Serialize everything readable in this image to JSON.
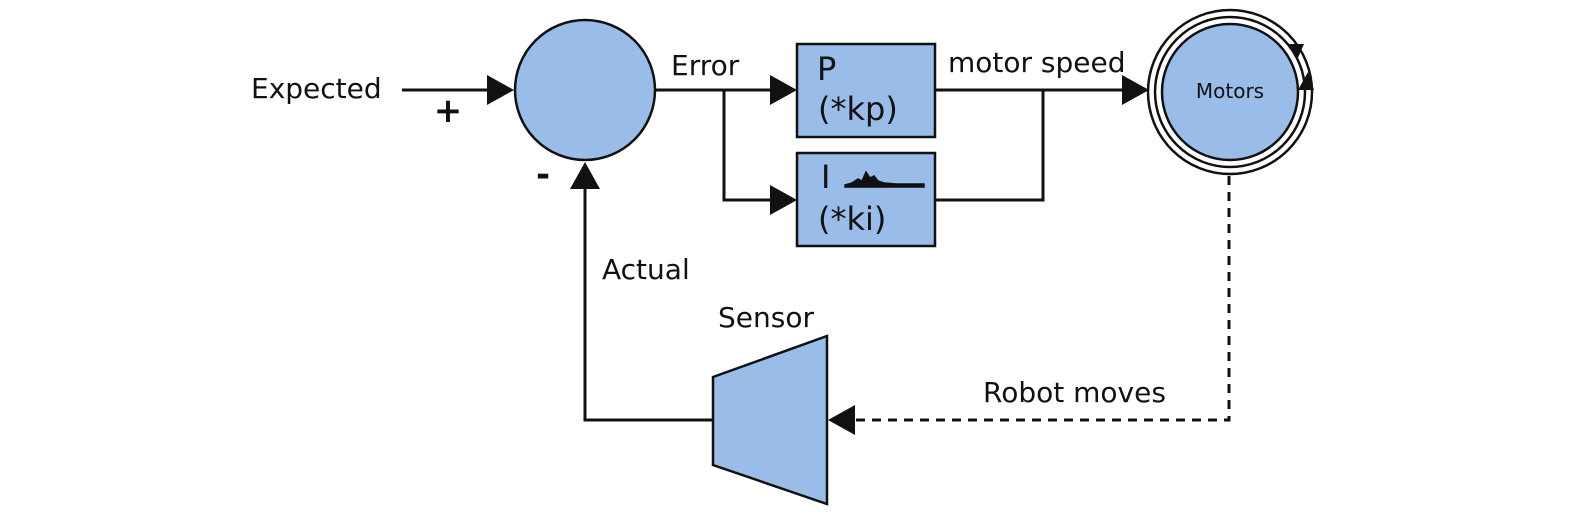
{
  "labels": {
    "expected": "Expected",
    "plus": "+",
    "minus": "-",
    "error": "Error",
    "p_line1": "P",
    "p_line2": "(*kp)",
    "i_line1": "I",
    "i_line2": "(*ki)",
    "motor_speed": "motor speed",
    "motors": "Motors",
    "actual": "Actual",
    "sensor": "Sensor",
    "robot_moves": "Robot moves"
  },
  "colors": {
    "block_fill": "#99bde8",
    "stroke": "#111111",
    "background": "#ffffff"
  }
}
